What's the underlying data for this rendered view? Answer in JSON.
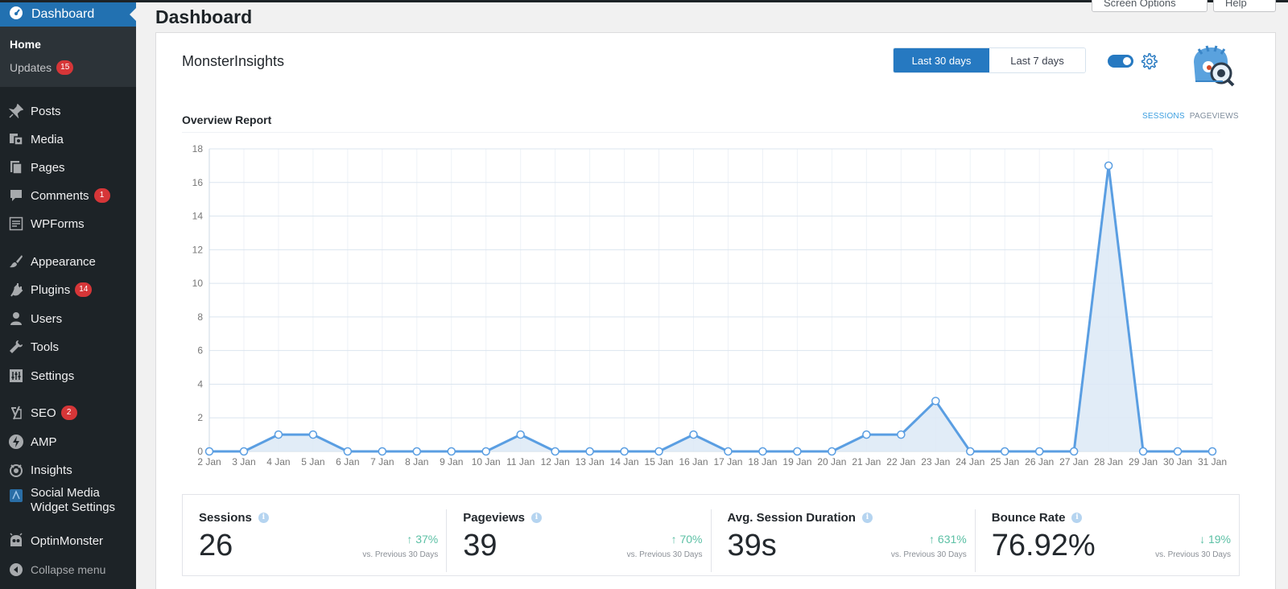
{
  "sidebar": {
    "dashboard": "Dashboard",
    "submenu": [
      {
        "label": "Home"
      },
      {
        "label": "Updates",
        "badge": "15"
      }
    ],
    "items": [
      {
        "label": "Posts",
        "icon": "pin-icon"
      },
      {
        "label": "Media",
        "icon": "media-icon"
      },
      {
        "label": "Pages",
        "icon": "pages-icon"
      },
      {
        "label": "Comments",
        "icon": "comment-icon",
        "badge": "1"
      },
      {
        "label": "WPForms",
        "icon": "form-icon"
      },
      {
        "label": "Appearance",
        "icon": "brush-icon"
      },
      {
        "label": "Plugins",
        "icon": "plugin-icon",
        "badge": "14"
      },
      {
        "label": "Users",
        "icon": "user-icon"
      },
      {
        "label": "Tools",
        "icon": "wrench-icon"
      },
      {
        "label": "Settings",
        "icon": "settings-icon"
      },
      {
        "label": "SEO",
        "icon": "yoast-icon",
        "badge": "2"
      },
      {
        "label": "AMP",
        "icon": "amp-icon"
      },
      {
        "label": "Insights",
        "icon": "insights-icon"
      },
      {
        "label": "Social Media",
        "label2": "Widget Settings",
        "icon": "social-widget-icon"
      },
      {
        "label": "OptinMonster",
        "icon": "optinmonster-icon"
      }
    ],
    "collapse": "Collapse menu"
  },
  "header": {
    "title": "Dashboard",
    "screen_options": "Screen Options",
    "help": "Help"
  },
  "widget": {
    "brand": "MonsterInsights",
    "range_30": "Last 30 days",
    "range_7": "Last 7 days",
    "report_title": "Overview Report",
    "tab_sessions": "SESSIONS",
    "tab_pageviews": "PAGEVIEWS"
  },
  "chart_data": {
    "type": "area",
    "x": [
      "2 Jan",
      "3 Jan",
      "4 Jan",
      "5 Jan",
      "6 Jan",
      "7 Jan",
      "8 Jan",
      "9 Jan",
      "10 Jan",
      "11 Jan",
      "12 Jan",
      "13 Jan",
      "14 Jan",
      "15 Jan",
      "16 Jan",
      "17 Jan",
      "18 Jan",
      "19 Jan",
      "20 Jan",
      "21 Jan",
      "22 Jan",
      "23 Jan",
      "24 Jan",
      "25 Jan",
      "26 Jan",
      "27 Jan",
      "28 Jan",
      "29 Jan",
      "30 Jan",
      "31 Jan"
    ],
    "series": [
      {
        "values": [
          0,
          0,
          1,
          1,
          0,
          0,
          0,
          0,
          0,
          1,
          0,
          0,
          0,
          0,
          1,
          0,
          0,
          0,
          0,
          1,
          1,
          3,
          0,
          0,
          0,
          0,
          17,
          0,
          0,
          0
        ]
      }
    ],
    "ylim": [
      0,
      18
    ],
    "yticks": [
      0,
      2,
      4,
      6,
      8,
      10,
      12,
      14,
      16,
      18
    ],
    "grid": true,
    "colors": {
      "line": "#5a9ee2",
      "fill": "#dce9f6"
    }
  },
  "stats": [
    {
      "name": "Sessions",
      "value": "26",
      "change": "↑ 37%",
      "compare": "vs. Previous 30 Days"
    },
    {
      "name": "Pageviews",
      "value": "39",
      "change": "↑ 70%",
      "compare": "vs. Previous 30 Days"
    },
    {
      "name": "Avg. Session Duration",
      "value": "39s",
      "change": "↑ 631%",
      "compare": "vs. Previous 30 Days"
    },
    {
      "name": "Bounce Rate",
      "value": "76.92%",
      "change": "↓ 19%",
      "compare": "vs. Previous 30 Days"
    }
  ]
}
